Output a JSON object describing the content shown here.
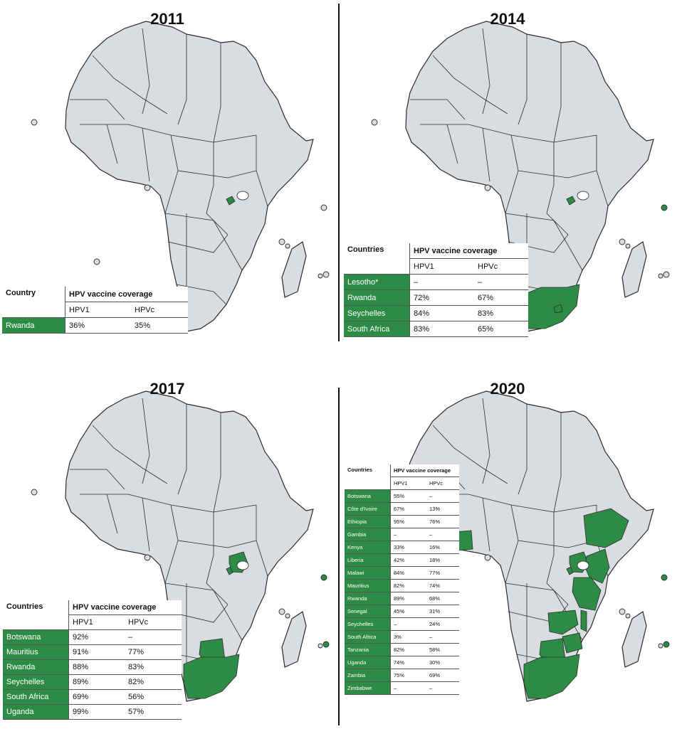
{
  "figure": {
    "panels": [
      {
        "year": "2011",
        "highlighted_countries": [
          "Rwanda"
        ],
        "table": {
          "col_country": "Country",
          "col_coverage": "HPV vaccine coverage",
          "sub_hpv1": "HPV1",
          "sub_hpvc": "HPVc",
          "rows": [
            {
              "country": "Rwanda",
              "hpv1": "36%",
              "hpvc": "35%"
            }
          ]
        }
      },
      {
        "year": "2014",
        "highlighted_countries": [
          "Lesotho",
          "Rwanda",
          "Seychelles",
          "South Africa"
        ],
        "table": {
          "col_country": "Countries",
          "col_coverage": "HPV vaccine coverage",
          "sub_hpv1": "HPV1",
          "sub_hpvc": "HPVc",
          "rows": [
            {
              "country": "Lesotho*",
              "hpv1": "–",
              "hpvc": "–"
            },
            {
              "country": "Rwanda",
              "hpv1": "72%",
              "hpvc": "67%"
            },
            {
              "country": "Seychelles",
              "hpv1": "84%",
              "hpvc": "83%"
            },
            {
              "country": "South Africa",
              "hpv1": "83%",
              "hpvc": "65%"
            }
          ]
        }
      },
      {
        "year": "2017",
        "highlighted_countries": [
          "Botswana",
          "Mauritius",
          "Rwanda",
          "Seychelles",
          "South Africa",
          "Uganda"
        ],
        "table": {
          "col_country": "Countries",
          "col_coverage": "HPV vaccine coverage",
          "sub_hpv1": "HPV1",
          "sub_hpvc": "HPVc",
          "rows": [
            {
              "country": "Botswana",
              "hpv1": "92%",
              "hpvc": "–"
            },
            {
              "country": "Mauritius",
              "hpv1": "91%",
              "hpvc": "77%"
            },
            {
              "country": "Rwanda",
              "hpv1": "88%",
              "hpvc": "83%"
            },
            {
              "country": "Seychelles",
              "hpv1": "89%",
              "hpvc": "82%"
            },
            {
              "country": "South Africa",
              "hpv1": "69%",
              "hpvc": "56%"
            },
            {
              "country": "Uganda",
              "hpv1": "99%",
              "hpvc": "57%"
            }
          ]
        }
      },
      {
        "year": "2020",
        "highlighted_countries": [
          "Botswana",
          "Côte d'Ivoire",
          "Ethiopia",
          "Gambia",
          "Kenya",
          "Liberia",
          "Malawi",
          "Mauritius",
          "Rwanda",
          "Senegal",
          "Seychelles",
          "South Africa",
          "Tanzania",
          "Uganda",
          "Zambia",
          "Zimbabwe"
        ],
        "table": {
          "col_country": "Countries",
          "col_coverage": "HPV vaccine coverage",
          "sub_hpv1": "HPV1",
          "sub_hpvc": "HPVc",
          "rows": [
            {
              "country": "Botswana",
              "hpv1": "55%",
              "hpvc": "–"
            },
            {
              "country": "Côte d'Ivoire",
              "hpv1": "67%",
              "hpvc": "13%"
            },
            {
              "country": "Ethiopia",
              "hpv1": "95%",
              "hpvc": "76%"
            },
            {
              "country": "Gambia",
              "hpv1": "–",
              "hpvc": "–"
            },
            {
              "country": "Kenya",
              "hpv1": "33%",
              "hpvc": "16%"
            },
            {
              "country": "Liberia",
              "hpv1": "42%",
              "hpvc": "18%"
            },
            {
              "country": "Malawi",
              "hpv1": "84%",
              "hpvc": "77%"
            },
            {
              "country": "Mauritius",
              "hpv1": "82%",
              "hpvc": "74%"
            },
            {
              "country": "Rwanda",
              "hpv1": "89%",
              "hpvc": "68%"
            },
            {
              "country": "Senegal",
              "hpv1": "45%",
              "hpvc": "31%"
            },
            {
              "country": "Seychelles",
              "hpv1": "–",
              "hpvc": "24%"
            },
            {
              "country": "South Africa",
              "hpv1": "3%",
              "hpvc": "–"
            },
            {
              "country": "Tanzania",
              "hpv1": "82%",
              "hpvc": "58%"
            },
            {
              "country": "Uganda",
              "hpv1": "74%",
              "hpvc": "30%"
            },
            {
              "country": "Zambia",
              "hpv1": "75%",
              "hpvc": "69%"
            },
            {
              "country": "Zimbabwe",
              "hpv1": "–",
              "hpvc": "–"
            }
          ]
        }
      }
    ]
  },
  "colors": {
    "highlight": "#2e8b45",
    "land": "#d9dde1",
    "border": "#2b2b2b",
    "divider": "#111111"
  }
}
